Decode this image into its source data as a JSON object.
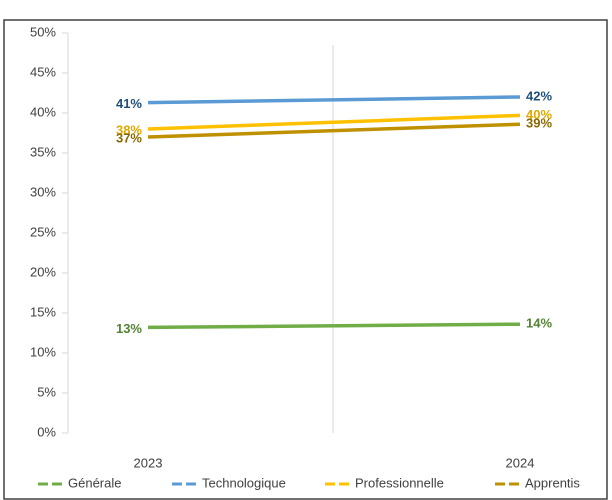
{
  "chart_data": {
    "type": "line",
    "categories": [
      "2023",
      "2024"
    ],
    "series": [
      {
        "name": "Générale",
        "color": "#70ad47",
        "label_color": "#548235",
        "values": [
          13.2,
          13.6
        ],
        "value_labels": [
          "13%",
          "14%"
        ]
      },
      {
        "name": "Technologique",
        "color": "#5b9bd5",
        "label_color": "#1f4e79",
        "values": [
          41.3,
          42.0
        ],
        "value_labels": [
          "41%",
          "42%"
        ]
      },
      {
        "name": "Professionnelle",
        "color": "#ffc000",
        "label_color": "#e0a800",
        "values": [
          38.0,
          39.7
        ],
        "value_labels": [
          "38%",
          "40%"
        ]
      },
      {
        "name": "Apprentis",
        "color": "#bf9000",
        "label_color": "#8a6a00",
        "values": [
          37.0,
          38.6
        ],
        "value_labels": [
          "37%",
          "39%"
        ]
      }
    ],
    "ylim": [
      0,
      50
    ],
    "yticks": [
      {
        "value": 0,
        "label": "0%"
      },
      {
        "value": 5,
        "label": "5%"
      },
      {
        "value": 10,
        "label": "10%"
      },
      {
        "value": 15,
        "label": "15%"
      },
      {
        "value": 20,
        "label": "20%"
      },
      {
        "value": 25,
        "label": "25%"
      },
      {
        "value": 30,
        "label": "30%"
      },
      {
        "value": 35,
        "label": "35%"
      },
      {
        "value": 40,
        "label": "40%"
      },
      {
        "value": 45,
        "label": "45%"
      },
      {
        "value": 50,
        "label": "50%"
      }
    ],
    "legend": "bottom"
  }
}
